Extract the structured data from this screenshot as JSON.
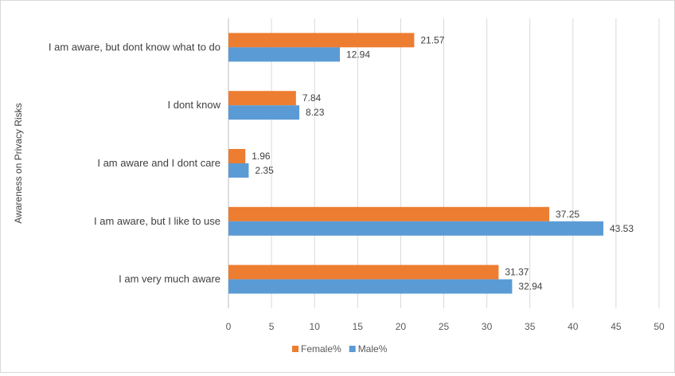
{
  "chart_data": {
    "type": "bar",
    "orientation": "horizontal",
    "categories": [
      "I am aware, but dont know what to do",
      "I dont know",
      "I am aware and I dont care",
      "I am aware, but I like to use",
      "I am very much aware"
    ],
    "series": [
      {
        "name": "Female%",
        "color": "#ED7D31",
        "values": [
          21.57,
          7.84,
          1.96,
          37.25,
          31.37
        ]
      },
      {
        "name": "Male%",
        "color": "#5B9BD5",
        "values": [
          12.94,
          8.23,
          2.35,
          43.53,
          32.94
        ]
      }
    ],
    "title": "",
    "xlabel": "",
    "ylabel": "Awareness on Privacy Risks",
    "xlim": [
      0,
      50
    ],
    "x_ticks": [
      0,
      5,
      10,
      15,
      20,
      25,
      30,
      35,
      40,
      45,
      50
    ],
    "grid": "vertical",
    "legend": "bottom"
  }
}
